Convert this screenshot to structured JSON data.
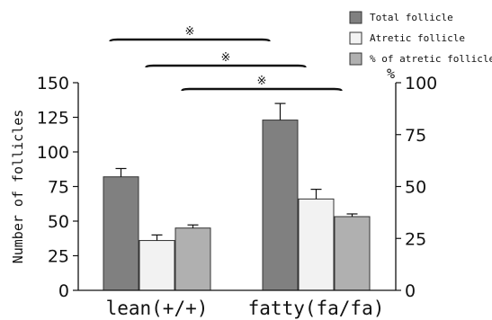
{
  "chart_data": {
    "type": "bar",
    "categories": [
      "lean(+/+)",
      "fatty(fa/fa)"
    ],
    "ylabel": "Number of follicles",
    "y2label": "%",
    "ylim": [
      0,
      150
    ],
    "y2lim": [
      0,
      100
    ],
    "yticks": [
      0,
      25,
      50,
      75,
      100,
      125,
      150
    ],
    "y2ticks": [
      0,
      25,
      50,
      75,
      100
    ],
    "series": [
      {
        "name": "Total follicle",
        "axis": "left",
        "color": "#808080",
        "values": [
          82,
          123
        ],
        "errors": [
          6,
          12
        ]
      },
      {
        "name": "Atretic follicle",
        "axis": "left",
        "color": "#f2f2f2",
        "values": [
          36,
          66
        ],
        "errors": [
          4,
          7
        ]
      },
      {
        "name": "% of atretic follicle",
        "axis": "right",
        "color": "#b0b0b0",
        "values": [
          30,
          35.5
        ],
        "errors": [
          1.5,
          1.3
        ]
      }
    ],
    "legend_position": "top-right",
    "significance": [
      {
        "symbol": "※",
        "series": "Total follicle"
      },
      {
        "symbol": "※",
        "series": "Atretic follicle"
      },
      {
        "symbol": "※",
        "series": "% of atretic follicle"
      }
    ]
  }
}
